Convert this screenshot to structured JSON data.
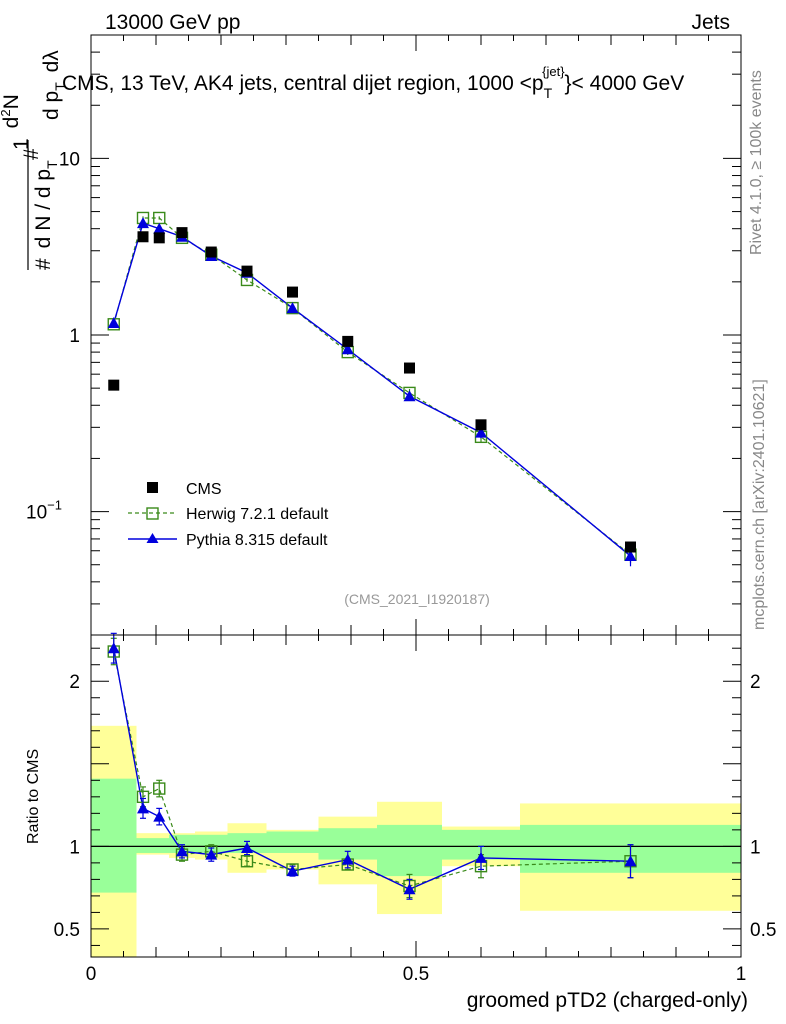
{
  "header": {
    "left": "13000 GeV pp",
    "right": "Jets"
  },
  "title": "CMS, 13 TeV, AK4 jets, central dijet region, 1000 <p",
  "title_sup": "{jet}",
  "title_sub": "T",
  "title_end": "}< 4000 GeV",
  "ylabel_parts": {
    "a": "#",
    "b": "1",
    "c": "d N / d p",
    "d": "T",
    "e": "#",
    "f": "d",
    "g": "2",
    "h": "N",
    "i": "d p",
    "j": "T",
    "k": " dλ"
  },
  "side_rivet": "Rivet 4.1.0, ≥ 100k events",
  "side_mcplots": "mcplots.cern.ch [arXiv:2401.10621]",
  "analysis_id": "(CMS_2021_I1920187)",
  "ratio_ylabel": "Ratio to CMS",
  "xlabel": "groomed pTD2 (charged-only)",
  "colors": {
    "cms": "#000000",
    "herwig": "#3a8a1a",
    "pythia": "#0000dd",
    "band_inner": "#99ff99",
    "band_outer": "#ffff99"
  },
  "legend": [
    {
      "label": "CMS"
    },
    {
      "label": "Herwig 7.2.1 default"
    },
    {
      "label": "Pythia 8.315 default"
    }
  ],
  "chart_data": {
    "type": "line",
    "xlim": [
      0,
      1
    ],
    "main_ylim": [
      0.02,
      50
    ],
    "main_yscale": "log",
    "ratio_ylim": [
      0.33,
      2.28
    ],
    "x_ticks": [
      {
        "v": 0,
        "label": "0"
      },
      {
        "v": 0.5,
        "label": "0.5"
      },
      {
        "v": 1,
        "label": "1"
      }
    ],
    "main_y_ticks": [
      {
        "v": 0.1,
        "label": "10",
        "exp": "−1"
      },
      {
        "v": 1,
        "label": "1"
      },
      {
        "v": 10,
        "label": "10"
      }
    ],
    "ratio_y_ticks": [
      {
        "v": 0.5,
        "label": "0.5"
      },
      {
        "v": 1,
        "label": "1"
      },
      {
        "v": 2,
        "label": "2"
      }
    ],
    "bin_edges": [
      0,
      0.07,
      0.09,
      0.12,
      0.16,
      0.21,
      0.27,
      0.35,
      0.44,
      0.54,
      0.66,
      1.0
    ],
    "x": [
      0.035,
      0.08,
      0.105,
      0.14,
      0.185,
      0.24,
      0.31,
      0.395,
      0.49,
      0.6,
      0.83
    ],
    "series": [
      {
        "name": "CMS",
        "values": [
          0.52,
          3.6,
          3.55,
          3.8,
          2.95,
          2.3,
          1.75,
          0.92,
          0.65,
          0.31,
          0.063
        ]
      },
      {
        "name": "Herwig 7.2.1 default",
        "values": [
          1.15,
          4.6,
          4.6,
          3.55,
          2.85,
          2.05,
          1.42,
          0.8,
          0.47,
          0.265,
          0.057
        ],
        "errors": [
          0.05,
          0.1,
          0.1,
          0.08,
          0.06,
          0.05,
          0.04,
          0.03,
          0.025,
          0.02,
          0.006
        ]
      },
      {
        "name": "Pythia 8.315 default",
        "values": [
          1.17,
          4.3,
          4.0,
          3.6,
          2.8,
          2.25,
          1.42,
          0.83,
          0.45,
          0.28,
          0.056
        ],
        "errors": [
          0.05,
          0.1,
          0.1,
          0.08,
          0.06,
          0.05,
          0.04,
          0.03,
          0.025,
          0.02,
          0.007
        ]
      }
    ],
    "ratio": {
      "Herwig 7.2.1 default": {
        "values": [
          2.18,
          1.3,
          1.35,
          0.95,
          0.97,
          0.91,
          0.86,
          0.89,
          0.76,
          0.88,
          0.91
        ],
        "errors": [
          0.08,
          0.06,
          0.05,
          0.04,
          0.04,
          0.03,
          0.03,
          0.03,
          0.07,
          0.07,
          0.1
        ]
      },
      "Pythia 8.315 default": {
        "values": [
          2.2,
          1.23,
          1.18,
          0.97,
          0.95,
          0.99,
          0.85,
          0.92,
          0.74,
          0.93,
          0.91
        ],
        "errors": [
          0.09,
          0.06,
          0.05,
          0.04,
          0.04,
          0.04,
          0.03,
          0.05,
          0.06,
          0.07,
          0.1
        ]
      }
    },
    "bands": {
      "inner_low": [
        0.72,
        0.96,
        0.96,
        0.96,
        0.96,
        0.96,
        0.96,
        0.92,
        0.82,
        0.92,
        0.84
      ],
      "inner_high": [
        1.41,
        1.05,
        1.05,
        1.07,
        1.07,
        1.08,
        1.09,
        1.11,
        1.13,
        1.1,
        1.13
      ],
      "outer_low": [
        0.33,
        0.95,
        0.95,
        0.93,
        0.92,
        0.84,
        0.86,
        0.77,
        0.59,
        0.88,
        0.61
      ],
      "outer_high": [
        1.73,
        1.08,
        1.08,
        1.08,
        1.09,
        1.14,
        1.1,
        1.18,
        1.27,
        1.12,
        1.26
      ]
    }
  }
}
